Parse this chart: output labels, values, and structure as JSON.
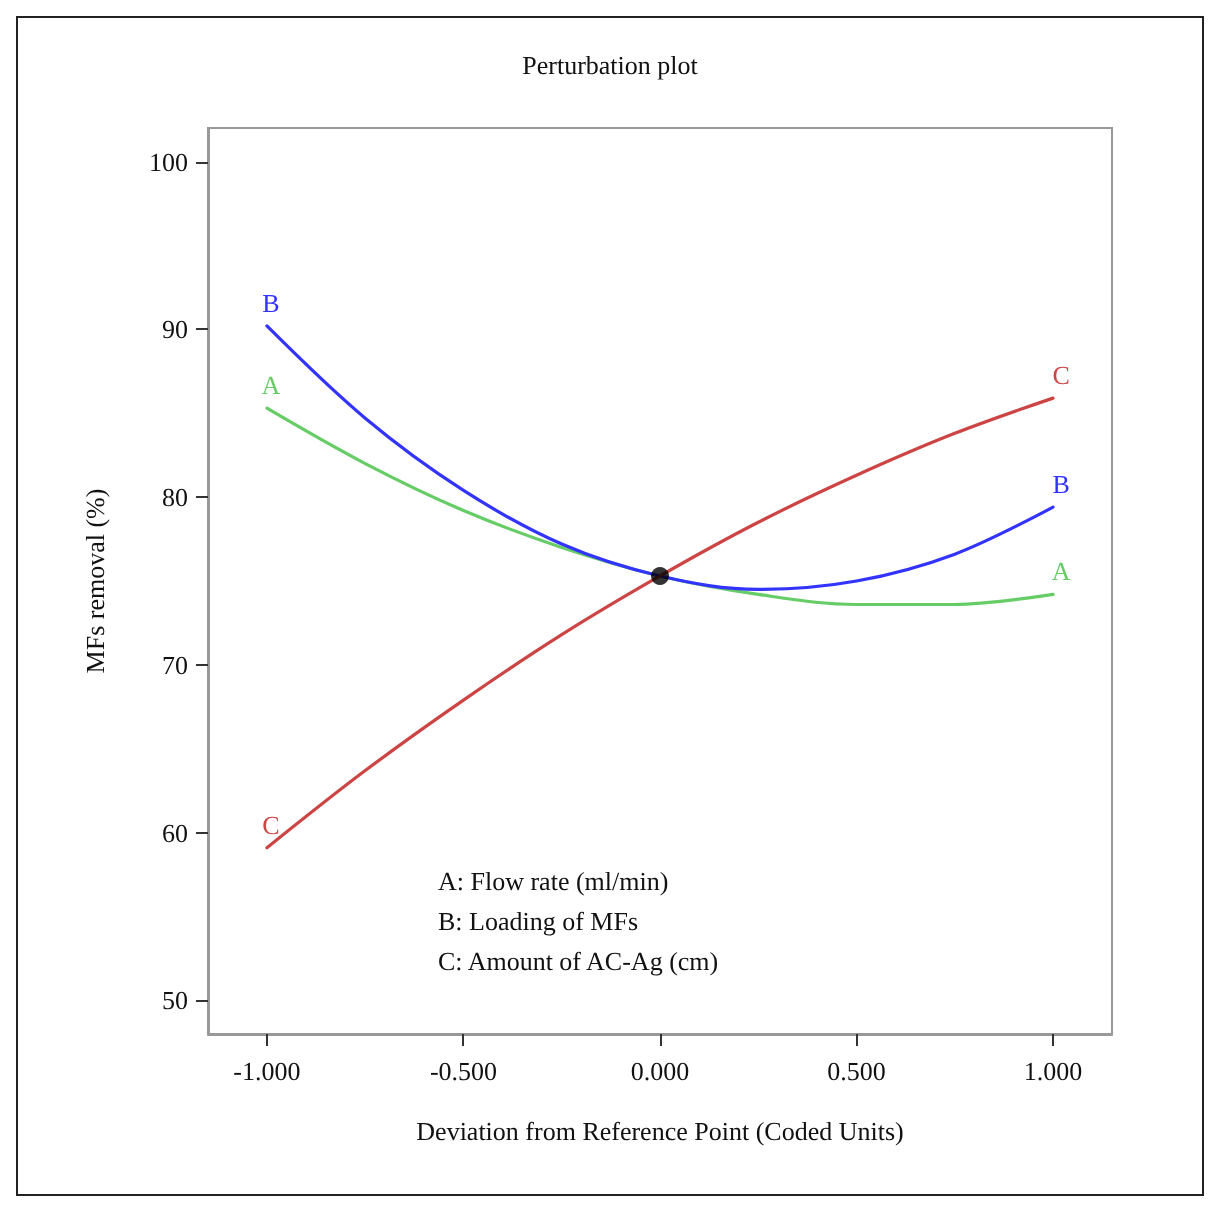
{
  "chart_data": {
    "type": "line",
    "title": "Perturbation plot",
    "xlabel": "Deviation from Reference Point (Coded Units)",
    "ylabel": "MFs removal (%)",
    "x": [
      -1,
      -0.75,
      -0.5,
      -0.25,
      0,
      0.25,
      0.5,
      0.75,
      1
    ],
    "series": [
      {
        "name": "A",
        "color": "#66cc66",
        "values": [
          85.3,
          82.0,
          79.2,
          77.0,
          75.3,
          74.2,
          73.6,
          73.6,
          74.2
        ]
      },
      {
        "name": "B",
        "color": "#3333ff",
        "values": [
          90.2,
          84.7,
          80.4,
          77.2,
          75.3,
          74.5,
          75.0,
          76.6,
          79.4
        ]
      },
      {
        "name": "C",
        "color": "#cc4444",
        "values": [
          59.1,
          63.7,
          67.9,
          71.8,
          75.3,
          78.5,
          81.3,
          83.8,
          85.9
        ]
      },
      {
        "type": "scatter",
        "color": "#000000",
        "x": [
          0
        ],
        "values": [
          75.3
        ],
        "marker": "circle"
      }
    ],
    "annotations": [
      "A: Flow rate (ml/min)",
      "B: Loading of MFs",
      "C: Amount of AC-Ag (cm)"
    ],
    "xlim": [
      -1.15,
      1.15
    ],
    "xticks": [
      {
        "value": -1,
        "label": "-1.000"
      },
      {
        "value": -0.5,
        "label": "-0.500"
      },
      {
        "value": 0,
        "label": "0.000"
      },
      {
        "value": 0.5,
        "label": "0.500"
      },
      {
        "value": 1,
        "label": "1.000"
      }
    ],
    "ylim": [
      48,
      102
    ],
    "yticks": [
      50,
      60,
      70,
      80,
      90,
      100
    ],
    "grid": false,
    "legend": false,
    "marker": "none",
    "line_style": "solid"
  }
}
